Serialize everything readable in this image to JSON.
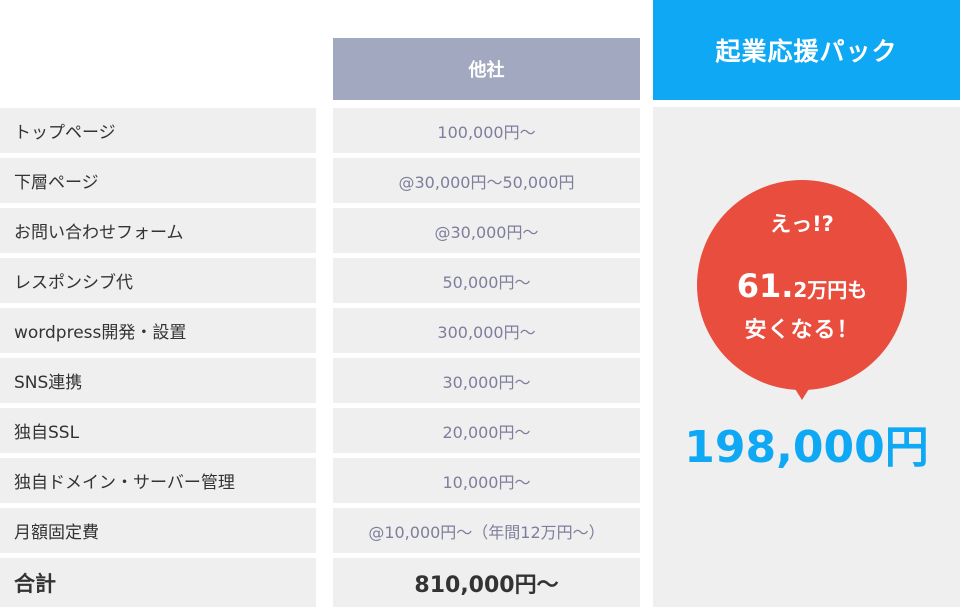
{
  "header": {
    "other_company": "他社",
    "pack_name": "起業応援パック"
  },
  "rows": [
    {
      "label": "トップページ",
      "other_price": "100,000円〜"
    },
    {
      "label": "下層ページ",
      "other_price": "@30,000円〜50,000円"
    },
    {
      "label": "お問い合わせフォーム",
      "other_price": "@30,000円〜"
    },
    {
      "label": "レスポンシブ代",
      "other_price": "50,000円〜"
    },
    {
      "label": "wordpress開発・設置",
      "other_price": "300,000円〜"
    },
    {
      "label": "SNS連携",
      "other_price": "30,000円〜"
    },
    {
      "label": "独自SSL",
      "other_price": "20,000円〜"
    },
    {
      "label": "独自ドメイン・サーバー管理",
      "other_price": "10,000円〜"
    },
    {
      "label": "月額固定費",
      "other_price": "@10,000円〜（年間12万円〜）"
    }
  ],
  "total": {
    "label": "合計",
    "other_price": "810,000円〜"
  },
  "bubble": {
    "line1": "えっ!?",
    "amount_big": "61.",
    "amount_small": "2万円も",
    "line3": "安くなる！"
  },
  "pack_price": "198,000円",
  "colors": {
    "other_header": "#a3a8c1",
    "pack_header": "#0ea8f4",
    "bubble": "#e84d3d",
    "row_bg": "#efefef"
  }
}
